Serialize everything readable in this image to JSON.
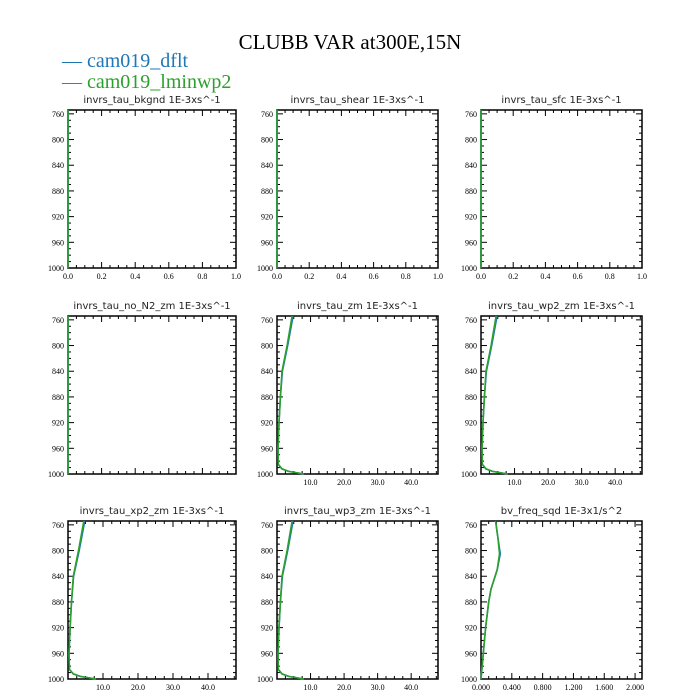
{
  "title": "CLUBB VAR at300E,15N",
  "legend": [
    {
      "label": "cam019_dflt",
      "color": "#1f77b4"
    },
    {
      "label": "cam019_lminwp2",
      "color": "#2ca02c"
    }
  ],
  "chart_data": [
    {
      "type": "line",
      "title": "invrs_tau_bkgnd   1E-3xs^-1",
      "xlim": [
        0,
        1
      ],
      "ylim": [
        1000,
        754
      ],
      "xticks": [
        "0.0",
        "0.2",
        "0.4",
        "0.6",
        "0.8",
        "1.0"
      ],
      "yticks": [
        "760",
        "800",
        "840",
        "880",
        "920",
        "960",
        "1000"
      ],
      "series": [
        {
          "name": "cam019_dflt",
          "y": [
            754,
            1000
          ],
          "x": [
            0,
            0
          ]
        },
        {
          "name": "cam019_lminwp2",
          "y": [
            754,
            1000
          ],
          "x": [
            0,
            0
          ]
        }
      ]
    },
    {
      "type": "line",
      "title": "invrs_tau_shear   1E-3xs^-1",
      "xlim": [
        0,
        1
      ],
      "ylim": [
        1000,
        754
      ],
      "xticks": [
        "0.0",
        "0.2",
        "0.4",
        "0.6",
        "0.8",
        "1.0"
      ],
      "yticks": [
        "760",
        "800",
        "840",
        "880",
        "920",
        "960",
        "1000"
      ],
      "series": [
        {
          "name": "cam019_dflt",
          "y": [
            754,
            1000
          ],
          "x": [
            0,
            0
          ]
        },
        {
          "name": "cam019_lminwp2",
          "y": [
            754,
            1000
          ],
          "x": [
            0,
            0
          ]
        }
      ]
    },
    {
      "type": "line",
      "title": "invrs_tau_sfc   1E-3xs^-1",
      "xlim": [
        0,
        1
      ],
      "ylim": [
        1000,
        754
      ],
      "xticks": [
        "0.0",
        "0.2",
        "0.4",
        "0.6",
        "0.8",
        "1.0"
      ],
      "yticks": [
        "760",
        "800",
        "840",
        "880",
        "920",
        "960",
        "1000"
      ],
      "series": [
        {
          "name": "cam019_dflt",
          "y": [
            754,
            1000
          ],
          "x": [
            0,
            0
          ]
        },
        {
          "name": "cam019_lminwp2",
          "y": [
            754,
            1000
          ],
          "x": [
            0,
            0
          ]
        }
      ]
    },
    {
      "type": "line",
      "title": "invrs_tau_no_N2_zm   1E-3xs^-1",
      "xlim": [
        0,
        1
      ],
      "ylim": [
        1000,
        754
      ],
      "xticks": [],
      "yticks": [
        "760",
        "800",
        "840",
        "880",
        "920",
        "960",
        "1000"
      ],
      "series": [
        {
          "name": "cam019_dflt",
          "y": [
            754,
            1000
          ],
          "x": [
            0,
            0
          ]
        },
        {
          "name": "cam019_lminwp2",
          "y": [
            754,
            1000
          ],
          "x": [
            0,
            0
          ]
        }
      ]
    },
    {
      "type": "line",
      "title": "invrs_tau_zm   1E-3xs^-1",
      "xlim": [
        0,
        48
      ],
      "ylim": [
        1000,
        754
      ],
      "xticks": [
        "10.0",
        "20.0",
        "30.0",
        "40.0"
      ],
      "yticks": [
        "760",
        "800",
        "840",
        "880",
        "920",
        "960",
        "1000"
      ],
      "series": [
        {
          "name": "cam019_dflt",
          "y": [
            754,
            800,
            840,
            880,
            920,
            960,
            985,
            992,
            996,
            1000
          ],
          "x": [
            4.8,
            3.2,
            1.6,
            1.0,
            0.6,
            0.3,
            0.4,
            1.5,
            3.5,
            8.0
          ]
        },
        {
          "name": "cam019_lminwp2",
          "y": [
            754,
            800,
            840,
            880,
            920,
            960,
            985,
            992,
            996,
            1000
          ],
          "x": [
            4.5,
            3.0,
            1.5,
            1.0,
            0.6,
            0.3,
            0.4,
            1.5,
            3.5,
            8.0
          ]
        }
      ]
    },
    {
      "type": "line",
      "title": "invrs_tau_wp2_zm   1E-3xs^-1",
      "xlim": [
        0,
        48
      ],
      "ylim": [
        1000,
        754
      ],
      "xticks": [
        "10.0",
        "20.0",
        "30.0",
        "40.0"
      ],
      "yticks": [
        "760",
        "800",
        "840",
        "880",
        "920",
        "960",
        "1000"
      ],
      "series": [
        {
          "name": "cam019_dflt",
          "y": [
            754,
            800,
            840,
            880,
            920,
            960,
            985,
            992,
            996,
            1000
          ],
          "x": [
            4.8,
            3.2,
            1.6,
            1.0,
            0.6,
            0.3,
            0.4,
            1.5,
            3.5,
            8.0
          ]
        },
        {
          "name": "cam019_lminwp2",
          "y": [
            754,
            800,
            840,
            880,
            920,
            960,
            985,
            992,
            996,
            1000
          ],
          "x": [
            4.5,
            3.0,
            1.5,
            1.0,
            0.6,
            0.3,
            0.4,
            1.5,
            3.5,
            8.0
          ]
        }
      ]
    },
    {
      "type": "line",
      "title": "invrs_tau_xp2_zm   1E-3xs^-1",
      "xlim": [
        0,
        48
      ],
      "ylim": [
        1000,
        754
      ],
      "xticks": [
        "10.0",
        "20.0",
        "30.0",
        "40.0"
      ],
      "yticks": [
        "760",
        "800",
        "840",
        "880",
        "920",
        "960",
        "1000"
      ],
      "series": [
        {
          "name": "cam019_dflt",
          "y": [
            754,
            800,
            840,
            880,
            920,
            960,
            985,
            992,
            996,
            1000
          ],
          "x": [
            4.8,
            3.2,
            1.6,
            1.0,
            0.6,
            0.3,
            0.4,
            1.5,
            3.5,
            8.0
          ]
        },
        {
          "name": "cam019_lminwp2",
          "y": [
            754,
            800,
            840,
            880,
            920,
            960,
            985,
            992,
            996,
            1000
          ],
          "x": [
            4.5,
            3.0,
            1.5,
            1.0,
            0.6,
            0.3,
            0.4,
            1.5,
            3.5,
            8.0
          ]
        }
      ]
    },
    {
      "type": "line",
      "title": "invrs_tau_wp3_zm   1E-3xs^-1",
      "xlim": [
        0,
        48
      ],
      "ylim": [
        1000,
        754
      ],
      "xticks": [
        "10.0",
        "20.0",
        "30.0",
        "40.0"
      ],
      "yticks": [
        "760",
        "800",
        "840",
        "880",
        "920",
        "960",
        "1000"
      ],
      "series": [
        {
          "name": "cam019_dflt",
          "y": [
            754,
            800,
            840,
            880,
            920,
            960,
            985,
            992,
            996,
            1000
          ],
          "x": [
            4.8,
            3.2,
            1.6,
            1.0,
            0.6,
            0.3,
            0.4,
            1.5,
            3.5,
            8.0
          ]
        },
        {
          "name": "cam019_lminwp2",
          "y": [
            754,
            800,
            840,
            880,
            920,
            960,
            985,
            992,
            996,
            1000
          ],
          "x": [
            4.5,
            3.0,
            1.5,
            1.0,
            0.6,
            0.3,
            0.4,
            1.5,
            3.5,
            8.0
          ]
        }
      ]
    },
    {
      "type": "line",
      "title": "bv_freq_sqd   1E-3x1/s^2",
      "xlim": [
        0,
        2.09
      ],
      "ylim": [
        1000,
        754
      ],
      "xticks": [
        "0.000",
        "0.400",
        "0.800",
        "1.200",
        "1.600",
        "2.000"
      ],
      "yticks": [
        "760",
        "800",
        "840",
        "880",
        "920",
        "960",
        "1000"
      ],
      "series": [
        {
          "name": "cam019_dflt",
          "y": [
            754,
            780,
            805,
            830,
            860,
            880,
            920,
            960,
            1000
          ],
          "x": [
            0.19,
            0.22,
            0.25,
            0.21,
            0.13,
            0.1,
            0.06,
            0.03,
            0.0
          ]
        },
        {
          "name": "cam019_lminwp2",
          "y": [
            754,
            780,
            805,
            830,
            860,
            880,
            920,
            960,
            1000
          ],
          "x": [
            0.19,
            0.22,
            0.24,
            0.21,
            0.13,
            0.1,
            0.06,
            0.03,
            0.0
          ]
        }
      ]
    }
  ]
}
